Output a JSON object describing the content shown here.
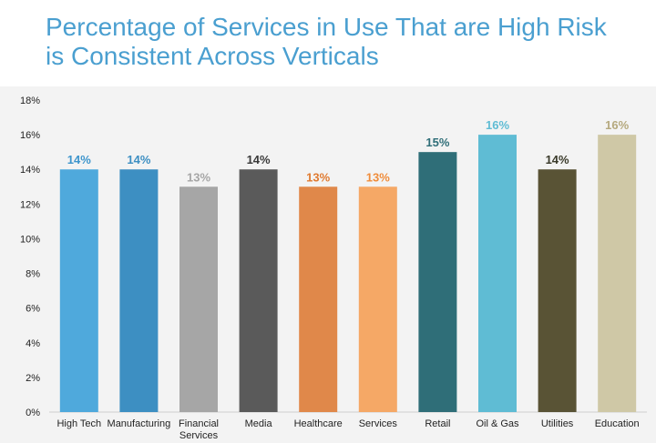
{
  "title_lines": [
    "Percentage of Services in Use That are High Risk",
    "is Consistent Across Verticals"
  ],
  "chart_data": {
    "type": "bar",
    "title": "Percentage of Services in Use That are High Risk is Consistent Across Verticals",
    "categories": [
      [
        "High Tech"
      ],
      [
        "Manufacturing"
      ],
      [
        "Financial",
        "Services"
      ],
      [
        "Media"
      ],
      [
        "Healthcare"
      ],
      [
        "Services"
      ],
      [
        "Retail"
      ],
      [
        "Oil & Gas"
      ],
      [
        "Utilities"
      ],
      [
        "Education"
      ]
    ],
    "values": [
      14,
      14,
      13,
      14,
      13,
      13,
      15,
      16,
      14,
      16
    ],
    "data_labels": [
      "14%",
      "14%",
      "13%",
      "14%",
      "13%",
      "13%",
      "15%",
      "16%",
      "14%",
      "16%"
    ],
    "colors": [
      "#4fa9dc",
      "#3d8fc2",
      "#a6a6a6",
      "#5a5a5a",
      "#e0884a",
      "#f5a866",
      "#2f6e78",
      "#5fbcd4",
      "#595335",
      "#cfc8a6"
    ],
    "label_colors": [
      "#3d95cc",
      "#3d8fc2",
      "#a6a6a6",
      "#3a3a3a",
      "#e07a30",
      "#f08c3a",
      "#2f6e78",
      "#5fbcd4",
      "#3a3a2a",
      "#b5a97e"
    ],
    "y_ticks": [
      "0%",
      "2%",
      "4%",
      "6%",
      "8%",
      "10%",
      "12%",
      "14%",
      "16%",
      "18%"
    ],
    "ylim": [
      0,
      18
    ],
    "xlabel": "",
    "ylabel": "",
    "grid": false,
    "legend": "none"
  }
}
